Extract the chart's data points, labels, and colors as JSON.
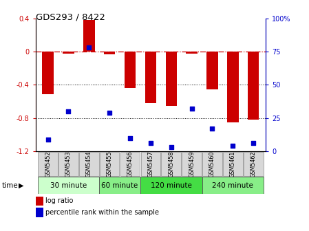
{
  "title": "GDS293 / 8422",
  "samples": [
    "GSM5452",
    "GSM5453",
    "GSM5454",
    "GSM5455",
    "GSM5456",
    "GSM5457",
    "GSM5458",
    "GSM5459",
    "GSM5460",
    "GSM5461",
    "GSM5462"
  ],
  "log_ratio": [
    -0.51,
    -0.02,
    0.38,
    -0.03,
    -0.44,
    -0.62,
    -0.65,
    -0.02,
    -0.45,
    -0.85,
    -0.82
  ],
  "percentile_rank": [
    9,
    30,
    78,
    29,
    10,
    6,
    3,
    32,
    17,
    4,
    6
  ],
  "bar_color": "#cc0000",
  "dot_color": "#0000cc",
  "ylim_left": [
    -1.2,
    0.4
  ],
  "ylim_right": [
    0,
    100
  ],
  "left_yticks": [
    -1.2,
    -0.8,
    -0.4,
    0,
    0.4
  ],
  "left_yticklabels": [
    "-1.2",
    "-0.8",
    "-0.4",
    "0",
    "0.4"
  ],
  "right_yticks": [
    0,
    25,
    50,
    75,
    100
  ],
  "right_yticklabels": [
    "0",
    "25",
    "50",
    "75",
    "100%"
  ],
  "hline_y": 0,
  "hline_color": "#cc0000",
  "hline_style": "-.",
  "dotted_lines": [
    -0.4,
    -0.8
  ],
  "time_groups": [
    {
      "label": "30 minute",
      "start": 0,
      "end": 3,
      "color": "#ccffcc"
    },
    {
      "label": "60 minute",
      "start": 3,
      "end": 5,
      "color": "#88ee88"
    },
    {
      "label": "120 minute",
      "start": 5,
      "end": 8,
      "color": "#44dd44"
    },
    {
      "label": "240 minute",
      "start": 8,
      "end": 11,
      "color": "#88ee88"
    }
  ],
  "time_label": "time",
  "legend_bar_label": "log ratio",
  "legend_dot_label": "percentile rank within the sample",
  "bar_width": 0.55
}
